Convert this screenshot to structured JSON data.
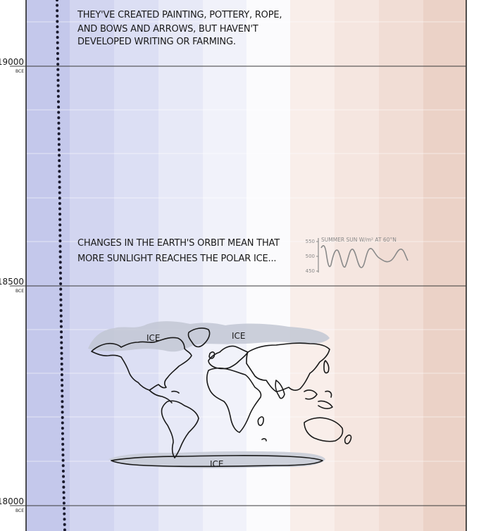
{
  "time_axis": {
    "ticks": [
      {
        "year": "19000",
        "era": "BCE"
      },
      {
        "year": "18500",
        "era": "BCE"
      },
      {
        "year": "18000",
        "era": "BCE"
      }
    ]
  },
  "notes": {
    "culture": [
      "THEY'VE CREATED PAINTING, POTTERY, ROPE,",
      "AND BOWS AND ARROWS, BUT HAVEN'T",
      "DEVELOPED WRITING OR FARMING."
    ],
    "orbit": [
      "CHANGES IN THE EARTH'S ORBIT MEAN THAT",
      "MORE SUNLIGHT REACHES THE POLAR ICE..."
    ]
  },
  "sunlight_chart": {
    "title": "SUMMER SUN W/m² AT 60°N",
    "ticks": [
      "550",
      "500",
      "450"
    ]
  },
  "map": {
    "ice_labels": [
      "ICE",
      "ICE",
      "ICE"
    ]
  },
  "colors": {
    "cold": "#c4c8eb",
    "neutral": "#fbfbfd",
    "warm": "#ebd2c7",
    "ice": "#cdd1dc",
    "line": "#1a1a2e"
  }
}
